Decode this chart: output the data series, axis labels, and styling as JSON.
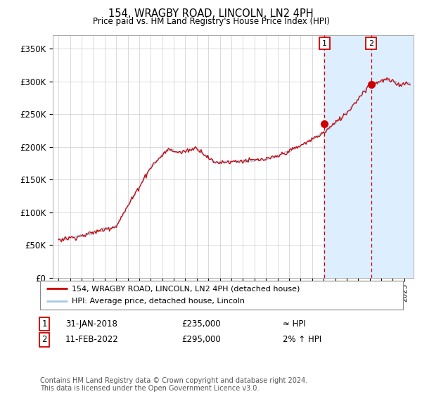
{
  "title": "154, WRAGBY ROAD, LINCOLN, LN2 4PH",
  "subtitle": "Price paid vs. HM Land Registry's House Price Index (HPI)",
  "ylabel_ticks": [
    "£0",
    "£50K",
    "£100K",
    "£150K",
    "£200K",
    "£250K",
    "£300K",
    "£350K"
  ],
  "ytick_values": [
    0,
    50000,
    100000,
    150000,
    200000,
    250000,
    300000,
    350000
  ],
  "ylim": [
    0,
    370000
  ],
  "xlim_start": 1994.5,
  "xlim_end": 2025.8,
  "sale1_date": 2018.08,
  "sale1_price": 235000,
  "sale1_label": "1",
  "sale2_date": 2022.12,
  "sale2_price": 295000,
  "sale2_label": "2",
  "legend_line1": "154, WRAGBY ROAD, LINCOLN, LN2 4PH (detached house)",
  "legend_line2": "HPI: Average price, detached house, Lincoln",
  "table_row1": [
    "1",
    "31-JAN-2018",
    "£235,000",
    "≈ HPI"
  ],
  "table_row2": [
    "2",
    "11-FEB-2022",
    "£295,000",
    "2% ↑ HPI"
  ],
  "footnote": "Contains HM Land Registry data © Crown copyright and database right 2024.\nThis data is licensed under the Open Government Licence v3.0.",
  "hpi_color": "#a8c8e8",
  "price_color": "#cc0000",
  "sale_dot_color": "#cc0000",
  "vline_color": "#cc0000",
  "background_color": "#ffffff",
  "grid_color": "#cccccc",
  "box_color": "#cc0000",
  "shade_color": "#ddeeff"
}
